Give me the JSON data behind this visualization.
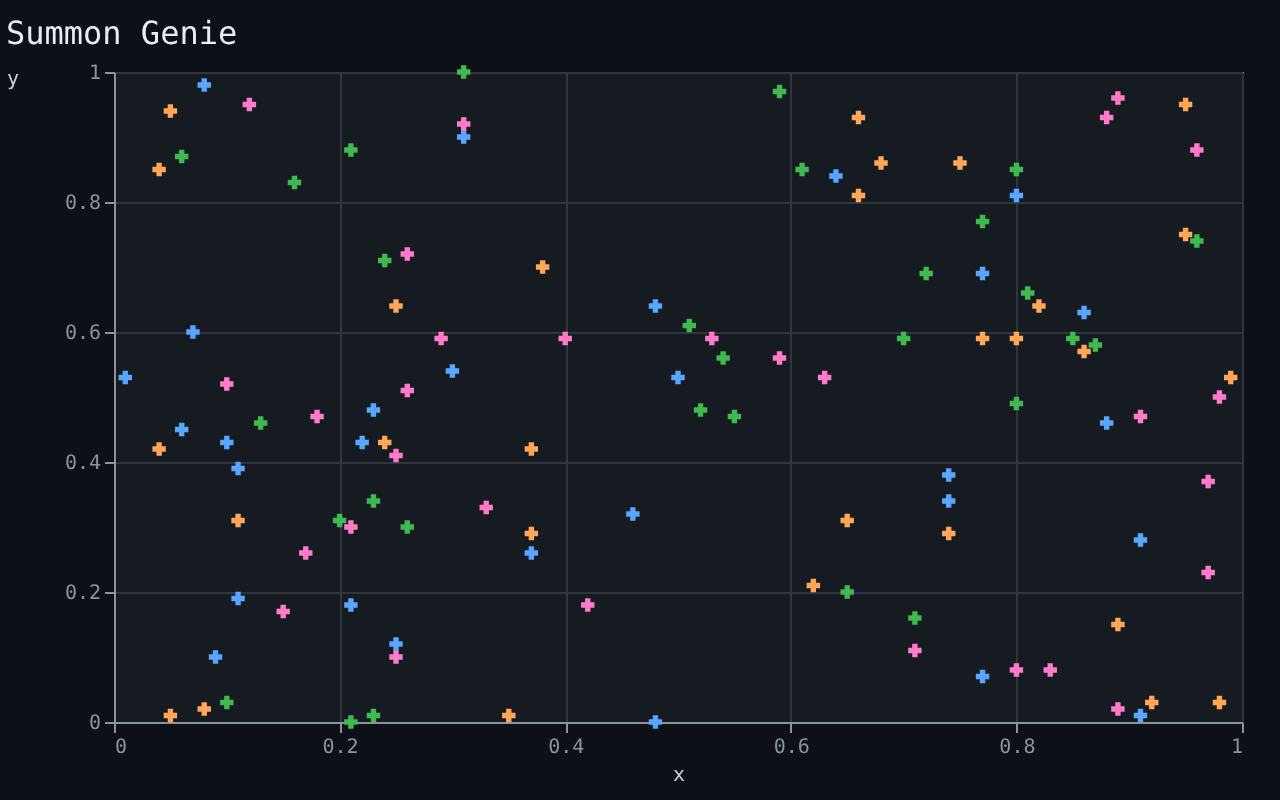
{
  "chart_data": {
    "type": "scatter",
    "title": "Summon Genie",
    "xlabel": "x",
    "ylabel": "y",
    "xlim": [
      0,
      1
    ],
    "ylim": [
      0,
      1
    ],
    "xticks": [
      0,
      0.2,
      0.4,
      0.6,
      0.8,
      1
    ],
    "yticks": [
      0,
      0.2,
      0.4,
      0.6,
      0.8,
      1
    ],
    "grid": true,
    "marker": "cross",
    "series": [
      {
        "color": "#58a6ff",
        "x": [
          0.01,
          0.08,
          0.07,
          0.06,
          0.1,
          0.11,
          0.11,
          0.09,
          0.23,
          0.22,
          0.21,
          0.25,
          0.3,
          0.31,
          0.37,
          0.46,
          0.48,
          0.48,
          0.5,
          0.64,
          0.74,
          0.74,
          0.77,
          0.77,
          0.8,
          0.86,
          0.88,
          0.91,
          0.91
        ],
        "values": [
          0.53,
          0.98,
          0.6,
          0.45,
          0.43,
          0.39,
          0.19,
          0.1,
          0.48,
          0.43,
          0.18,
          0.12,
          0.54,
          0.9,
          0.26,
          0.32,
          0.64,
          0.0,
          0.53,
          0.84,
          0.38,
          0.34,
          0.69,
          0.07,
          0.81,
          0.63,
          0.46,
          0.28,
          0.01
        ]
      },
      {
        "color": "#ffa657",
        "x": [
          0.05,
          0.04,
          0.04,
          0.11,
          0.05,
          0.08,
          0.24,
          0.25,
          0.38,
          0.37,
          0.37,
          0.35,
          0.66,
          0.66,
          0.65,
          0.62,
          0.68,
          0.75,
          0.95,
          0.95,
          0.82,
          0.77,
          0.8,
          0.86,
          0.99,
          0.74,
          0.89,
          0.92,
          0.98
        ],
        "values": [
          0.94,
          0.85,
          0.42,
          0.31,
          0.01,
          0.02,
          0.43,
          0.64,
          0.7,
          0.42,
          0.29,
          0.01,
          0.93,
          0.81,
          0.31,
          0.21,
          0.86,
          0.86,
          0.95,
          0.75,
          0.64,
          0.59,
          0.59,
          0.57,
          0.53,
          0.29,
          0.15,
          0.03,
          0.03
        ]
      },
      {
        "color": "#3fb950",
        "x": [
          0.31,
          0.06,
          0.21,
          0.16,
          0.24,
          0.13,
          0.23,
          0.2,
          0.26,
          0.1,
          0.21,
          0.23,
          0.59,
          0.61,
          0.51,
          0.54,
          0.52,
          0.55,
          0.65,
          0.8,
          0.77,
          0.72,
          0.7,
          0.81,
          0.85,
          0.87,
          0.96,
          0.8,
          0.71
        ],
        "values": [
          1.0,
          0.87,
          0.88,
          0.83,
          0.71,
          0.46,
          0.34,
          0.31,
          0.3,
          0.03,
          0.0,
          0.01,
          0.97,
          0.85,
          0.61,
          0.56,
          0.48,
          0.47,
          0.2,
          0.85,
          0.77,
          0.69,
          0.59,
          0.66,
          0.59,
          0.58,
          0.74,
          0.49,
          0.16
        ]
      },
      {
        "color": "#ff7bc9",
        "x": [
          0.12,
          0.31,
          0.26,
          0.29,
          0.1,
          0.26,
          0.18,
          0.25,
          0.33,
          0.17,
          0.15,
          0.25,
          0.21,
          0.4,
          0.53,
          0.59,
          0.63,
          0.42,
          0.89,
          0.88,
          0.96,
          0.98,
          0.91,
          0.97,
          0.97,
          0.71,
          0.8,
          0.83,
          0.89
        ],
        "values": [
          0.95,
          0.92,
          0.72,
          0.59,
          0.52,
          0.51,
          0.47,
          0.41,
          0.33,
          0.26,
          0.17,
          0.1,
          0.3,
          0.59,
          0.59,
          0.56,
          0.53,
          0.18,
          0.96,
          0.93,
          0.88,
          0.5,
          0.47,
          0.37,
          0.23,
          0.11,
          0.08,
          0.08,
          0.02
        ]
      }
    ]
  }
}
